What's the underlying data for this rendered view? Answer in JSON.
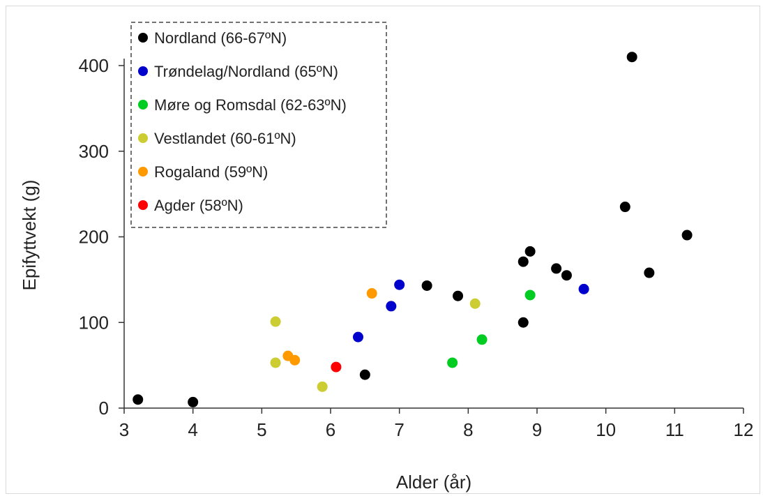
{
  "chart_data": {
    "type": "scatter",
    "xlabel": "Alder  (år)",
    "ylabel": "Epifyttvekt  (g)",
    "xlim": [
      3,
      12
    ],
    "ylim": [
      0,
      400
    ],
    "x_ticks": [
      3,
      4,
      5,
      6,
      7,
      8,
      9,
      10,
      11,
      12
    ],
    "y_ticks": [
      0,
      100,
      200,
      300,
      400
    ],
    "grid": false,
    "legend_position": "top-left",
    "series": [
      {
        "name": "Nordland (66-67ºN)",
        "color": "#000000",
        "points": [
          [
            3.2,
            10
          ],
          [
            4.0,
            7
          ],
          [
            6.5,
            39
          ],
          [
            7.4,
            143
          ],
          [
            7.85,
            131
          ],
          [
            8.8,
            100
          ],
          [
            8.8,
            171
          ],
          [
            8.9,
            183
          ],
          [
            9.28,
            163
          ],
          [
            9.43,
            155
          ],
          [
            10.28,
            235
          ],
          [
            10.38,
            410
          ],
          [
            10.63,
            158
          ],
          [
            11.18,
            202
          ]
        ]
      },
      {
        "name": "Trøndelag/Nordland (65ºN)",
        "color": "#0000cc",
        "points": [
          [
            6.4,
            83
          ],
          [
            6.88,
            119
          ],
          [
            7.0,
            144
          ],
          [
            9.68,
            139
          ]
        ]
      },
      {
        "name": "Møre og Romsdal (62-63ºN)",
        "color": "#00cc22",
        "points": [
          [
            7.77,
            53
          ],
          [
            8.2,
            80
          ],
          [
            8.9,
            132
          ]
        ]
      },
      {
        "name": "Vestlandet (60-61ºN)",
        "color": "#cccc33",
        "points": [
          [
            5.2,
            101
          ],
          [
            5.2,
            53
          ],
          [
            5.88,
            25
          ],
          [
            8.1,
            122
          ]
        ]
      },
      {
        "name": "Rogaland (59ºN)",
        "color": "#ff9900",
        "points": [
          [
            5.38,
            61
          ],
          [
            5.48,
            56
          ],
          [
            6.6,
            134
          ]
        ]
      },
      {
        "name": "Agder (58ºN)",
        "color": "#ff0000",
        "points": [
          [
            6.08,
            48
          ]
        ]
      }
    ]
  }
}
